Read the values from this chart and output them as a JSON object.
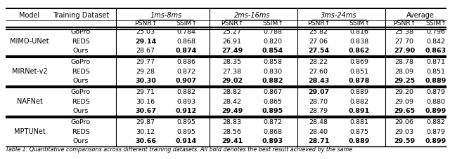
{
  "col_span_labels": [
    "1ms-8ms",
    "2ms-16ms",
    "3ms-24ms",
    "Average"
  ],
  "col_span_italic": [
    true,
    true,
    true,
    false
  ],
  "sub_labels": [
    "PSNR↑",
    "SSIM↑",
    "PSNR↑",
    "SSIM↑",
    "PSNR↑",
    "SSIM↑",
    "PSNR↑",
    "SSIM↑"
  ],
  "groups": [
    {
      "model": "MIMO-UNet",
      "rows": [
        {
          "dataset": "GoPro",
          "vals": [
            "25.03",
            "0.784",
            "25.27",
            "0.788",
            "25.82",
            "0.816",
            "25.38",
            "0.796"
          ],
          "bold": [
            false,
            false,
            false,
            false,
            false,
            false,
            false,
            false
          ]
        },
        {
          "dataset": "REDS",
          "vals": [
            "29.14",
            "0.868",
            "26.91",
            "0.820",
            "27.06",
            "0.838",
            "27.70",
            "0.842"
          ],
          "bold": [
            true,
            false,
            false,
            false,
            false,
            false,
            false,
            false
          ]
        },
        {
          "dataset": "Ours",
          "vals": [
            "28.67",
            "0.874",
            "27.49",
            "0.854",
            "27.54",
            "0.862",
            "27.90",
            "0.863"
          ],
          "bold": [
            false,
            true,
            true,
            true,
            true,
            true,
            true,
            true
          ]
        }
      ]
    },
    {
      "model": "MIRNet-v2",
      "rows": [
        {
          "dataset": "GoPro",
          "vals": [
            "29.77",
            "0.886",
            "28.35",
            "0.858",
            "28.22",
            "0.869",
            "28.78",
            "0.871"
          ],
          "bold": [
            false,
            false,
            false,
            false,
            false,
            false,
            false,
            false
          ]
        },
        {
          "dataset": "REDS",
          "vals": [
            "29.28",
            "0.872",
            "27.38",
            "0.830",
            "27.60",
            "0.851",
            "28.09",
            "0.851"
          ],
          "bold": [
            false,
            false,
            false,
            false,
            false,
            false,
            false,
            false
          ]
        },
        {
          "dataset": "Ours",
          "vals": [
            "30.30",
            "0.907",
            "29.02",
            "0.882",
            "28.43",
            "0.878",
            "29.25",
            "0.889"
          ],
          "bold": [
            true,
            true,
            true,
            true,
            true,
            true,
            true,
            true
          ]
        }
      ]
    },
    {
      "model": "NAFNet",
      "rows": [
        {
          "dataset": "GoPro",
          "vals": [
            "29.71",
            "0.882",
            "28.82",
            "0.867",
            "29.07",
            "0.889",
            "29.20",
            "0.879"
          ],
          "bold": [
            false,
            false,
            false,
            false,
            true,
            false,
            false,
            false
          ]
        },
        {
          "dataset": "REDS",
          "vals": [
            "30.16",
            "0.893",
            "28.42",
            "0.865",
            "28.70",
            "0.882",
            "29.09",
            "0.880"
          ],
          "bold": [
            false,
            false,
            false,
            false,
            false,
            false,
            false,
            false
          ]
        },
        {
          "dataset": "Ours",
          "vals": [
            "30.67",
            "0.912",
            "29.49",
            "0.895",
            "28.79",
            "0.891",
            "29.65",
            "0.899"
          ],
          "bold": [
            true,
            true,
            true,
            true,
            false,
            true,
            true,
            true
          ]
        }
      ]
    },
    {
      "model": "MPTUNet",
      "rows": [
        {
          "dataset": "GoPro",
          "vals": [
            "29.87",
            "0.895",
            "28.83",
            "0.872",
            "28.48",
            "0.881",
            "29.06",
            "0.882"
          ],
          "bold": [
            false,
            false,
            false,
            false,
            false,
            false,
            false,
            false
          ]
        },
        {
          "dataset": "REDS",
          "vals": [
            "30.12",
            "0.895",
            "28.56",
            "0.868",
            "28.40",
            "0.875",
            "29.03",
            "0.879"
          ],
          "bold": [
            false,
            false,
            false,
            false,
            false,
            false,
            false,
            false
          ]
        },
        {
          "dataset": "Ours",
          "vals": [
            "30.66",
            "0.914",
            "29.41",
            "0.893",
            "28.71",
            "0.889",
            "29.59",
            "0.899"
          ],
          "bold": [
            true,
            true,
            true,
            true,
            true,
            true,
            true,
            true
          ]
        }
      ]
    }
  ],
  "footer_text": "Table 1. Quantitative comparisons across different training datasets. All bold denotes the best result achieved by the same",
  "figsize": [
    6.4,
    2.27
  ],
  "dpi": 100,
  "font_size_header": 7.0,
  "font_size_data": 6.8,
  "font_size_footer": 5.8
}
